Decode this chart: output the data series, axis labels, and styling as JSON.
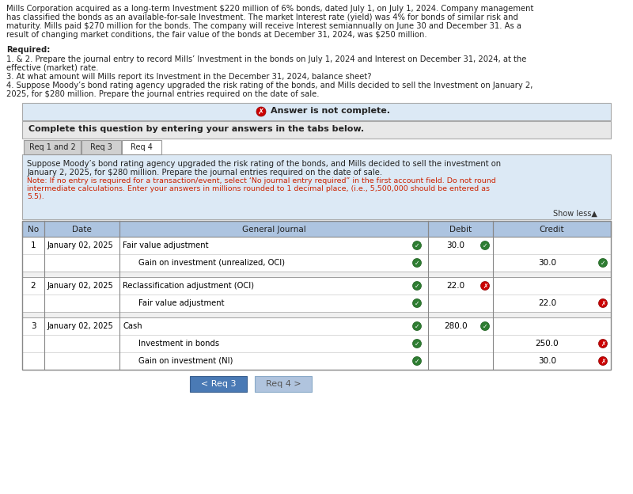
{
  "bg_color": "#ffffff",
  "header_text": "Mills Corporation acquired as a long-term Investment $220 million of 6% bonds, dated July 1, on July 1, 2024. Company management\nhas classified the bonds as an available-for-sale Investment. The market Interest rate (yield) was 4% for bonds of similar risk and\nmaturity. Mills paid $270 million for the bonds. The company will receive Interest semiannually on June 30 and December 31. As a\nresult of changing market conditions, the fair value of the bonds at December 31, 2024, was $250 million.",
  "required_title": "Required:",
  "required_items": [
    "1. & 2. Prepare the journal entry to record Mills’ Investment in the bonds on July 1, 2024 and Interest on December 31, 2024, at the\neffective (market) rate.",
    "3. At what amount will Mills report its Investment in the December 31, 2024, balance sheet?",
    "4. Suppose Moody’s bond rating agency upgraded the risk rating of the bonds, and Mills decided to sell the Investment on January 2,\n2025, for $280 million. Prepare the journal entries required on the date of sale."
  ],
  "answer_not_complete": "Answer is not complete.",
  "complete_text": "Complete this question by entering your answers in the tabs below.",
  "tabs": [
    "Req 1 and 2",
    "Req 3",
    "Req 4"
  ],
  "active_tab": "Req 4",
  "tab_description": "Suppose Moody’s bond rating agency upgraded the risk rating of the bonds, and Mills decided to sell the investment on\nJanuary 2, 2025, for $280 million. Prepare the journal entries required on the date of sale.",
  "note_text": "Note: If no entry is required for a transaction/event, select ‘No journal entry required” in the first account field. Do not round\nintermediate calculations. Enter your answers in millions rounded to 1 decimal place, (i.e., 5,500,000 should be entered as\n5.5).",
  "show_less": "Show less▲",
  "table_headers": [
    "No",
    "Date",
    "General Journal",
    "Debit",
    "Credit"
  ],
  "journal_entries": [
    {
      "no": "1",
      "date": "January 02, 2025",
      "account": "Fair value adjustment",
      "debit": "30.0",
      "credit": "",
      "debit_check": "green",
      "credit_check": "",
      "indent": false
    },
    {
      "no": "",
      "date": "",
      "account": "Gain on investment (unrealized, OCI)",
      "debit": "",
      "credit": "30.0",
      "debit_check": "",
      "credit_check": "green",
      "indent": true
    },
    {
      "no": "2",
      "date": "January 02, 2025",
      "account": "Reclassification adjustment (OCI)",
      "debit": "22.0",
      "credit": "",
      "debit_check": "red",
      "credit_check": "",
      "indent": false
    },
    {
      "no": "",
      "date": "",
      "account": "Fair value adjustment",
      "debit": "",
      "credit": "22.0",
      "debit_check": "",
      "credit_check": "red",
      "indent": true
    },
    {
      "no": "3",
      "date": "January 02, 2025",
      "account": "Cash",
      "debit": "280.0",
      "credit": "",
      "debit_check": "green",
      "credit_check": "",
      "indent": false
    },
    {
      "no": "",
      "date": "",
      "account": "Investment in bonds",
      "debit": "",
      "credit": "250.0",
      "debit_check": "",
      "credit_check": "red",
      "indent": true
    },
    {
      "no": "",
      "date": "",
      "account": "Gain on investment (NI)",
      "debit": "",
      "credit": "30.0",
      "debit_check": "",
      "credit_check": "red",
      "indent": true
    }
  ],
  "nav_buttons": [
    {
      "label": "< Req 3",
      "active": true
    },
    {
      "label": "Req 4 >",
      "active": false
    }
  ],
  "answer_banner_bg": "#dce9f5",
  "complete_banner_bg": "#e8e8e8",
  "tab_active_bg": "#ffffff",
  "tab_inactive_bg": "#d0d0d0",
  "tab_section_bg": "#dce9f5",
  "table_header_bg": "#adc4e0",
  "table_row_bg": "#ffffff",
  "table_border": "#999999",
  "red_icon": "#cc0000",
  "green_icon": "#2e7d32",
  "nav_active": "#4a7ab5",
  "nav_inactive": "#b0c4de",
  "red_text": "#cc2200",
  "body_text": "#222222"
}
